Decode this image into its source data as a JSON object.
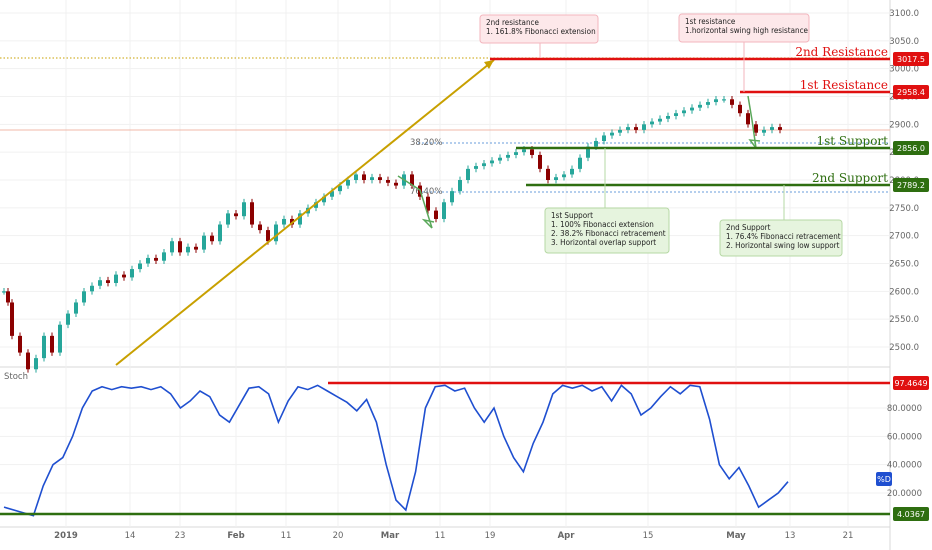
{
  "chart_data": [
    {
      "type": "candlestick",
      "panel": "price",
      "x_ticks": [
        "2019",
        "14",
        "23",
        "Feb",
        "11",
        "20",
        "Mar",
        "11",
        "19",
        "Apr",
        "15",
        "May",
        "13",
        "21"
      ],
      "y_ticks": [
        2500,
        2550,
        2600,
        2650,
        2700,
        2750,
        2800,
        2850,
        2900,
        2950,
        3000,
        3050,
        3100
      ],
      "ylim": [
        2470,
        3110
      ],
      "series": [
        {
          "values": [
            [
              0,
              2600
            ],
            [
              0.5,
              2580
            ],
            [
              1,
              2520
            ],
            [
              2,
              2490
            ],
            [
              3,
              2460
            ],
            [
              4,
              2480
            ],
            [
              5,
              2520
            ],
            [
              6,
              2490
            ],
            [
              7,
              2540
            ],
            [
              8,
              2560
            ],
            [
              9,
              2580
            ],
            [
              10,
              2600
            ],
            [
              11,
              2610
            ],
            [
              12,
              2620
            ],
            [
              13,
              2615
            ],
            [
              14,
              2630
            ],
            [
              15,
              2625
            ],
            [
              16,
              2640
            ],
            [
              17,
              2650
            ],
            [
              18,
              2660
            ],
            [
              19,
              2655
            ],
            [
              20,
              2670
            ],
            [
              21,
              2690
            ],
            [
              22,
              2670
            ],
            [
              23,
              2680
            ],
            [
              24,
              2675
            ],
            [
              25,
              2700
            ],
            [
              26,
              2690
            ],
            [
              27,
              2720
            ],
            [
              28,
              2740
            ],
            [
              29,
              2735
            ],
            [
              30,
              2760
            ],
            [
              31,
              2720
            ],
            [
              32,
              2710
            ],
            [
              33,
              2690
            ],
            [
              34,
              2720
            ],
            [
              35,
              2730
            ],
            [
              36,
              2720
            ],
            [
              37,
              2740
            ],
            [
              38,
              2750
            ],
            [
              39,
              2760
            ],
            [
              40,
              2770
            ],
            [
              41,
              2780
            ],
            [
              42,
              2790
            ],
            [
              43,
              2800
            ],
            [
              44,
              2810
            ],
            [
              45,
              2800
            ],
            [
              46,
              2805
            ],
            [
              47,
              2800
            ],
            [
              48,
              2795
            ],
            [
              49,
              2790
            ],
            [
              50,
              2810
            ],
            [
              51,
              2790
            ],
            [
              52,
              2770
            ],
            [
              53,
              2745
            ],
            [
              54,
              2730
            ],
            [
              55,
              2760
            ],
            [
              56,
              2780
            ],
            [
              57,
              2800
            ],
            [
              58,
              2820
            ],
            [
              59,
              2825
            ],
            [
              60,
              2830
            ],
            [
              61,
              2835
            ],
            [
              62,
              2840
            ],
            [
              63,
              2845
            ],
            [
              64,
              2850
            ],
            [
              65,
              2855
            ],
            [
              66,
              2845
            ],
            [
              67,
              2820
            ],
            [
              68,
              2800
            ],
            [
              69,
              2805
            ],
            [
              70,
              2810
            ],
            [
              71,
              2820
            ],
            [
              72,
              2840
            ],
            [
              73,
              2860
            ],
            [
              74,
              2870
            ],
            [
              75,
              2880
            ],
            [
              76,
              2885
            ],
            [
              77,
              2890
            ],
            [
              78,
              2895
            ],
            [
              79,
              2890
            ],
            [
              80,
              2900
            ],
            [
              81,
              2905
            ],
            [
              82,
              2910
            ],
            [
              83,
              2915
            ],
            [
              84,
              2920
            ],
            [
              85,
              2925
            ],
            [
              86,
              2930
            ],
            [
              87,
              2935
            ],
            [
              88,
              2940
            ],
            [
              89,
              2945
            ],
            [
              90,
              2945
            ],
            [
              91,
              2935
            ],
            [
              92,
              2920
            ],
            [
              93,
              2900
            ],
            [
              94,
              2885
            ],
            [
              95,
              2890
            ],
            [
              96,
              2895
            ],
            [
              97,
              2890
            ]
          ]
        }
      ],
      "levels": [
        {
          "value": 3017.5,
          "label": "2nd Resistance",
          "tag": "3017.5",
          "color": "#e01010"
        },
        {
          "value": 2958.4,
          "label": "1st Resistance",
          "tag": "2958.4",
          "color": "#e01010"
        },
        {
          "value": 2856.0,
          "label": "1st Support",
          "tag": "2856.0",
          "color": "#2e6e10"
        },
        {
          "value": 2789.2,
          "label": "2nd Support",
          "tag": "2789.2",
          "color": "#2e6e10"
        }
      ],
      "fib_labels": [
        "38.20%",
        "76.40%"
      ],
      "colors": {
        "up": "#26a69a",
        "down": "#8b0000",
        "trend": "#c8a000",
        "grid": "#eeeeee"
      }
    },
    {
      "type": "line",
      "panel": "indicator",
      "name": "Stoch",
      "y_ticks": [
        "20.0000",
        "40.0000",
        "60.0000",
        "80.0000"
      ],
      "ylim": [
        0,
        100
      ],
      "series": [
        {
          "name": "%D",
          "values": [
            [
              0,
              10
            ],
            [
              2,
              6
            ],
            [
              3,
              4
            ],
            [
              4,
              25
            ],
            [
              5,
              40
            ],
            [
              6,
              45
            ],
            [
              7,
              60
            ],
            [
              8,
              80
            ],
            [
              9,
              92
            ],
            [
              10,
              95
            ],
            [
              11,
              93
            ],
            [
              12,
              95
            ],
            [
              13,
              94
            ],
            [
              14,
              95
            ],
            [
              15,
              93
            ],
            [
              16,
              95
            ],
            [
              17,
              90
            ],
            [
              18,
              80
            ],
            [
              19,
              85
            ],
            [
              20,
              92
            ],
            [
              21,
              88
            ],
            [
              22,
              75
            ],
            [
              23,
              70
            ],
            [
              24,
              82
            ],
            [
              25,
              94
            ],
            [
              26,
              95
            ],
            [
              27,
              90
            ],
            [
              28,
              70
            ],
            [
              29,
              85
            ],
            [
              30,
              95
            ],
            [
              31,
              93
            ],
            [
              32,
              96
            ],
            [
              33,
              92
            ],
            [
              34,
              88
            ],
            [
              35,
              84
            ],
            [
              36,
              78
            ],
            [
              37,
              86
            ],
            [
              38,
              70
            ],
            [
              39,
              40
            ],
            [
              40,
              15
            ],
            [
              41,
              8
            ],
            [
              42,
              35
            ],
            [
              43,
              80
            ],
            [
              44,
              95
            ],
            [
              45,
              96
            ],
            [
              46,
              92
            ],
            [
              47,
              94
            ],
            [
              48,
              80
            ],
            [
              49,
              70
            ],
            [
              50,
              80
            ],
            [
              51,
              60
            ],
            [
              52,
              45
            ],
            [
              53,
              35
            ],
            [
              54,
              55
            ],
            [
              55,
              70
            ],
            [
              56,
              90
            ],
            [
              57,
              96
            ],
            [
              58,
              94
            ],
            [
              59,
              96
            ],
            [
              60,
              92
            ],
            [
              61,
              95
            ],
            [
              62,
              85
            ],
            [
              63,
              96
            ],
            [
              64,
              90
            ],
            [
              65,
              75
            ],
            [
              66,
              80
            ],
            [
              67,
              88
            ],
            [
              68,
              95
            ],
            [
              69,
              90
            ],
            [
              70,
              96
            ],
            [
              71,
              95
            ],
            [
              72,
              72
            ],
            [
              73,
              40
            ],
            [
              74,
              30
            ],
            [
              75,
              38
            ],
            [
              76,
              25
            ],
            [
              77,
              10
            ],
            [
              78,
              15
            ],
            [
              79,
              20
            ],
            [
              80,
              28
            ]
          ]
        }
      ],
      "levels": [
        {
          "value": 97.4649,
          "tag": "97.4649",
          "color": "#e01010"
        },
        {
          "value": 4.0367,
          "tag": "4.0367",
          "color": "#2e6e10"
        }
      ],
      "legend_tag": "%D"
    }
  ],
  "annotations": {
    "second_resistance": [
      "2nd resistance",
      "1. 161.8% Fibonacci extension"
    ],
    "first_resistance": [
      "1st resistance",
      "1.horizontal swing high resistance"
    ],
    "first_support": [
      "1st Support",
      "1. 100% Fibonacci extension",
      "2. 38.2% Fibonacci retracement",
      "3. Horizontal overlap support"
    ],
    "second_support": [
      "2nd Support",
      "1. 76.4% Fibonacci retracement",
      "2. Horizontal swing low support"
    ]
  }
}
